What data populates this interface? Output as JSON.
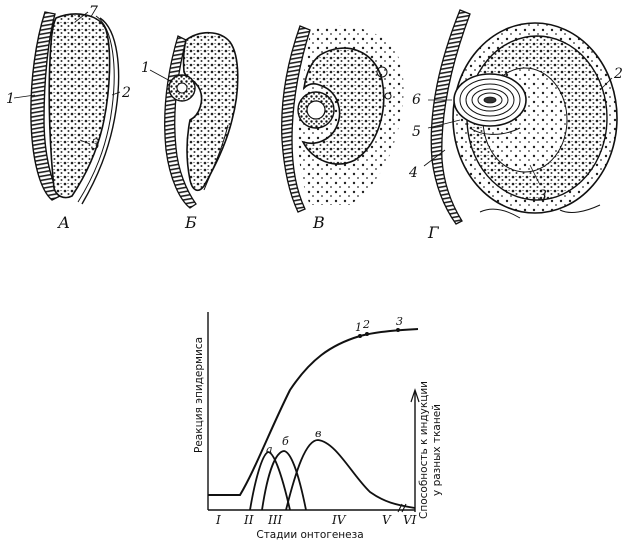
{
  "figure_top": {
    "panels": [
      {
        "letter": "А",
        "labels": [
          "1",
          "7",
          "2",
          "3"
        ]
      },
      {
        "letter": "Б",
        "labels": [
          "1"
        ]
      },
      {
        "letter": "В",
        "labels": []
      },
      {
        "letter": "Г",
        "labels": [
          "6",
          "5",
          "4",
          "2",
          "3"
        ]
      }
    ]
  },
  "chart_data": {
    "type": "line",
    "xlabel": "Стадии онтогенеза",
    "ylabel_left": "Реакция эпидермиса",
    "ylabel_right": "Способность к индукции у разных тканей",
    "ylabel_right_lines": [
      "Способность к индукции",
      "у разных тканей"
    ],
    "stages": [
      "I",
      "II",
      "III",
      "IV",
      "V",
      "VI"
    ],
    "curve_points": [
      "1",
      "2",
      "3"
    ],
    "peaks": [
      "а",
      "б",
      "в"
    ]
  }
}
